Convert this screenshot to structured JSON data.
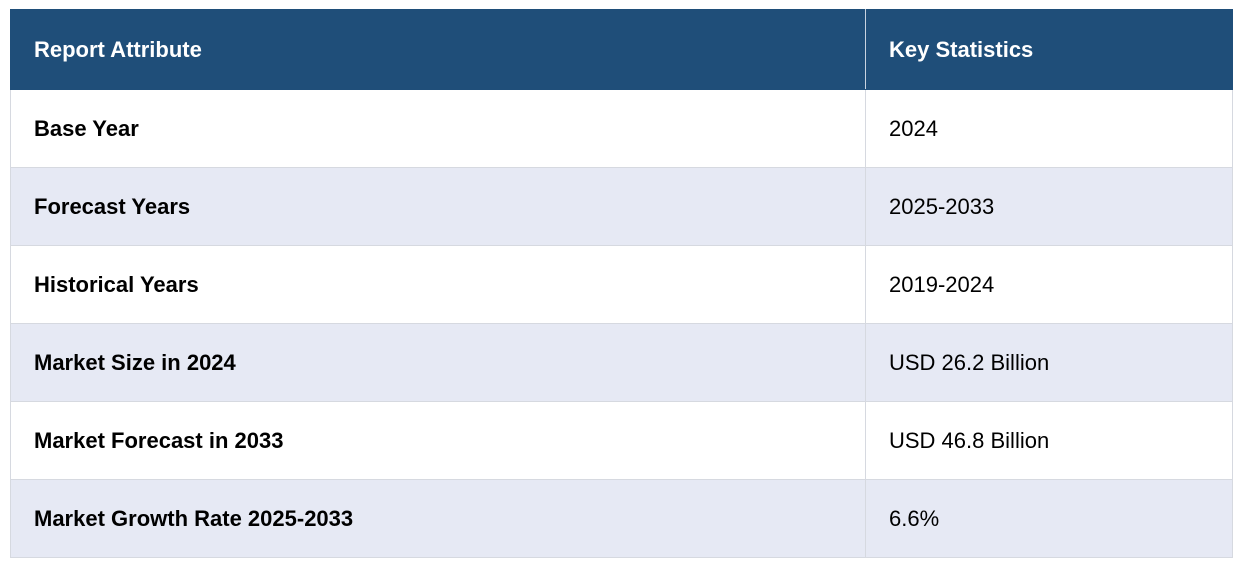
{
  "table": {
    "headers": {
      "attribute": "Report Attribute",
      "statistic": "Key Statistics"
    },
    "rows": [
      {
        "attribute": "Base Year",
        "statistic": "2024"
      },
      {
        "attribute": "Forecast Years",
        "statistic": "2025-2033"
      },
      {
        "attribute": "Historical Years",
        "statistic": "2019-2024"
      },
      {
        "attribute": "Market Size in 2024",
        "statistic": "USD 26.2 Billion"
      },
      {
        "attribute": "Market Forecast in 2033",
        "statistic": "USD 46.8 Billion"
      },
      {
        "attribute": "Market Growth Rate 2025-2033",
        "statistic": "6.6%"
      }
    ]
  },
  "colors": {
    "header_background": "#1f4e79",
    "header_text": "#ffffff",
    "row_alternate_background": "#e6e9f4",
    "row_background": "#ffffff"
  }
}
